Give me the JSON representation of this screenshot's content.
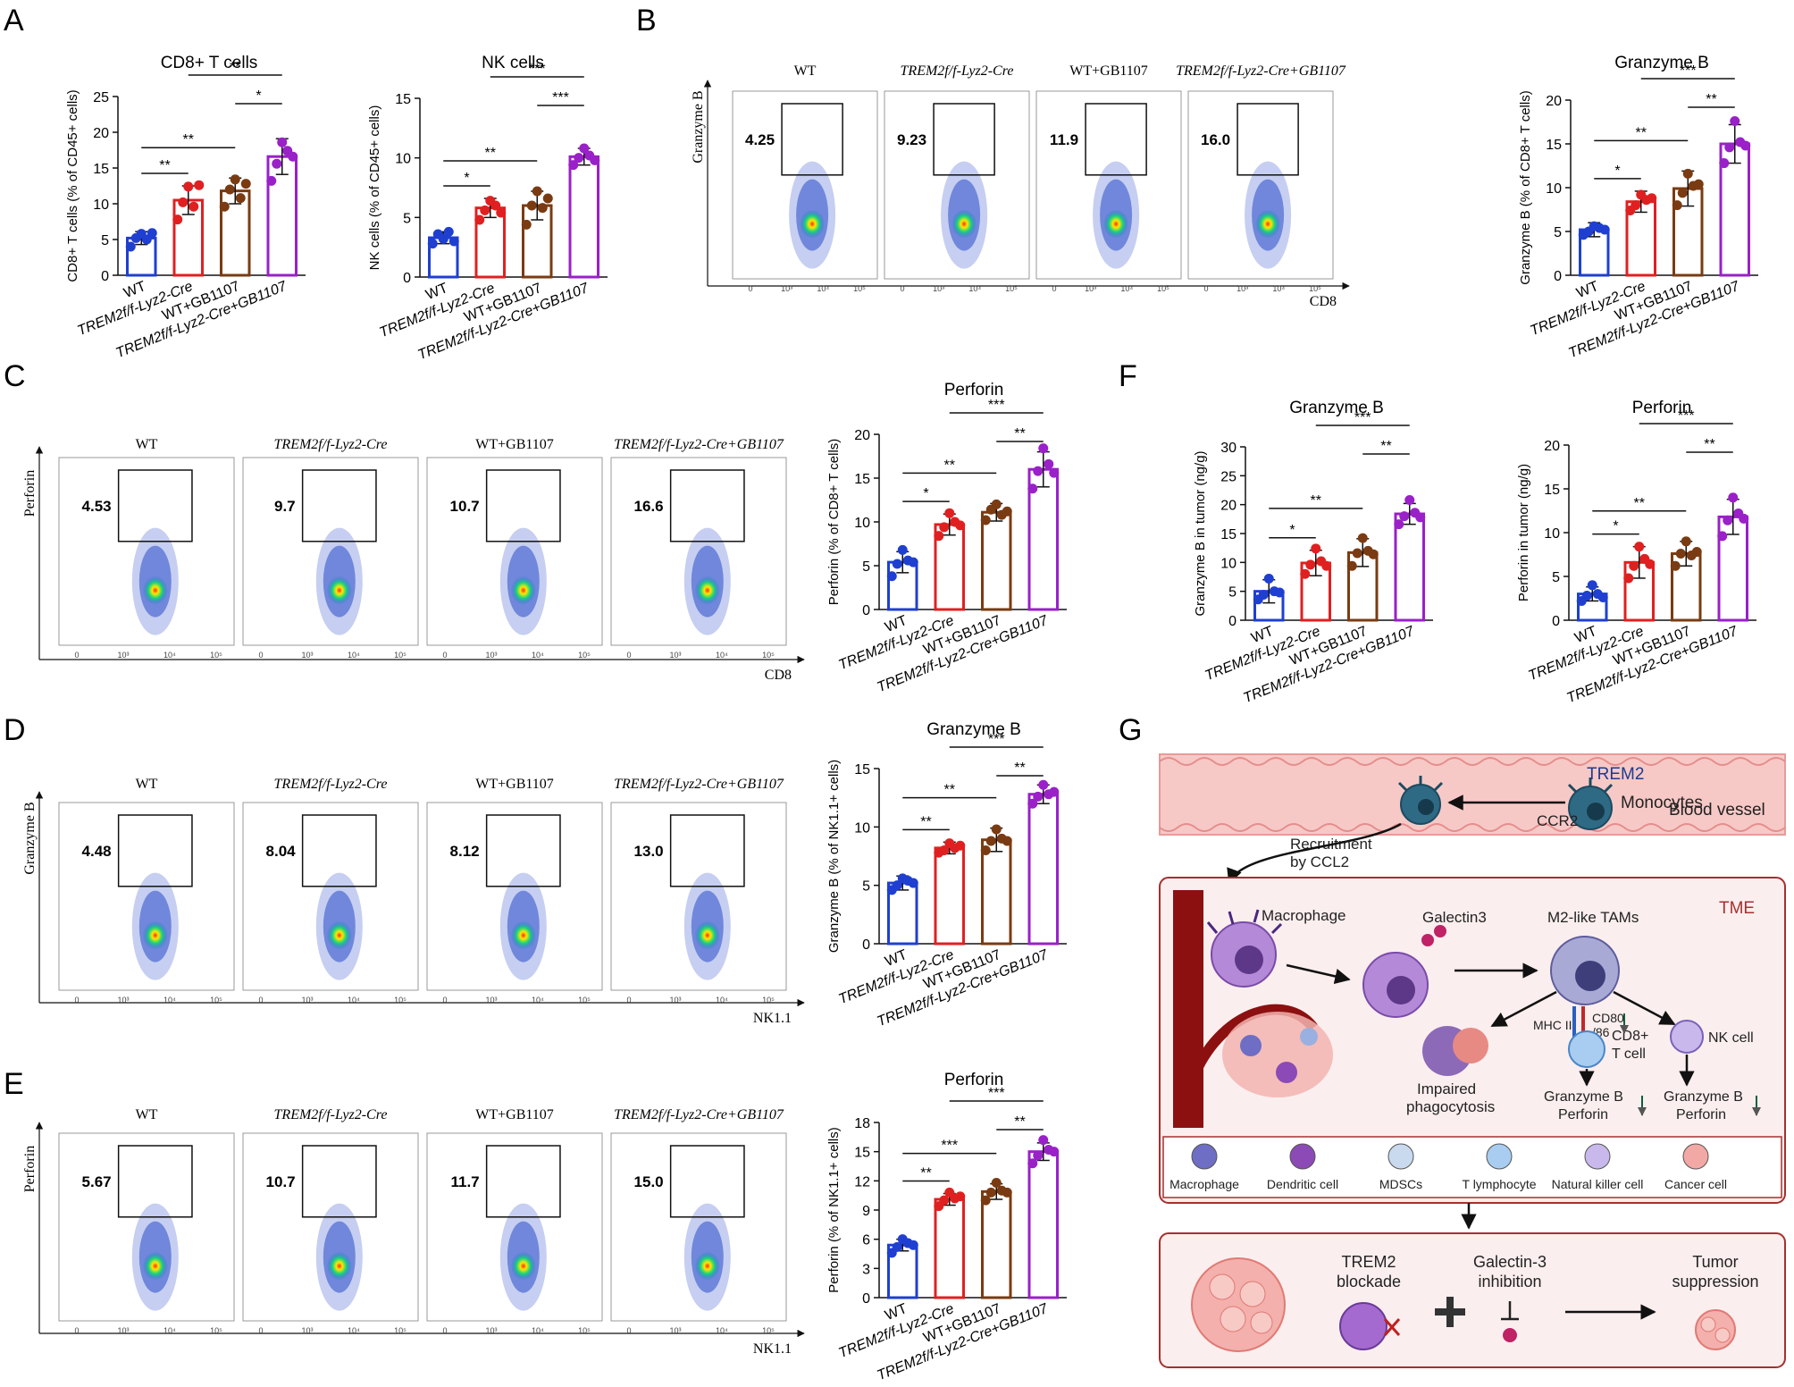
{
  "panel_letters": [
    "A",
    "B",
    "C",
    "D",
    "E",
    "F",
    "G"
  ],
  "groups": [
    "WT",
    "TREM2f/f-Lyz2-Cre",
    "WT+GB1107",
    "TREM2f/f-Lyz2-Cre+GB1107"
  ],
  "colors": {
    "WT": "#1f3fd1",
    "Cre": "#e02020",
    "GB": "#7a3b12",
    "CreGB": "#9a20c8"
  },
  "chart_data": [
    {
      "id": "A1",
      "type": "bar",
      "title": "CD8+ T cells",
      "ylabel": "CD8+ T cells (% of CD45+ cells)",
      "ylim": [
        0,
        25
      ],
      "yticks": [
        0,
        5,
        10,
        15,
        20,
        25
      ],
      "values": [
        5.2,
        10.5,
        11.8,
        16.6
      ],
      "errors": [
        0.9,
        2.0,
        1.8,
        2.5
      ],
      "points": [
        [
          4.0,
          5.2,
          5.8,
          5.0,
          5.9
        ],
        [
          7.8,
          10.2,
          12.4,
          9.6,
          12.6
        ],
        [
          9.6,
          12.0,
          13.4,
          10.8,
          12.8
        ],
        [
          13.2,
          15.6,
          18.6,
          17.4,
          16.6
        ]
      ],
      "sig": [
        {
          "a": 0,
          "b": 1,
          "t": "**",
          "lvl": 0
        },
        {
          "a": 0,
          "b": 2,
          "t": "**",
          "lvl": 1
        },
        {
          "a": 2,
          "b": 3,
          "t": "*",
          "lvl": 2
        },
        {
          "a": 1,
          "b": 3,
          "t": "**",
          "lvl": 3
        }
      ]
    },
    {
      "id": "A2",
      "type": "bar",
      "title": "NK cells",
      "ylabel": "NK cells (% of CD45+ cells)",
      "ylim": [
        0,
        15
      ],
      "yticks": [
        0,
        5,
        10,
        15
      ],
      "values": [
        3.3,
        5.8,
        6.0,
        10.1
      ],
      "errors": [
        0.5,
        0.8,
        1.2,
        0.7
      ],
      "points": [
        [
          2.8,
          3.6,
          3.2,
          3.8,
          3.0
        ],
        [
          4.8,
          5.6,
          6.4,
          6.0,
          5.4
        ],
        [
          4.4,
          6.0,
          7.2,
          5.8,
          6.6
        ],
        [
          9.4,
          10.0,
          10.8,
          10.2,
          9.8
        ]
      ],
      "sig": [
        {
          "a": 0,
          "b": 1,
          "t": "*",
          "lvl": 0
        },
        {
          "a": 0,
          "b": 2,
          "t": "**",
          "lvl": 1
        },
        {
          "a": 2,
          "b": 3,
          "t": "***",
          "lvl": 2
        },
        {
          "a": 1,
          "b": 3,
          "t": "***",
          "lvl": 3
        }
      ]
    },
    {
      "id": "B",
      "type": "bar",
      "title": "Granzyme B",
      "ylabel": "Granzyme B (% of CD8+ T cells)",
      "ylim": [
        0,
        20
      ],
      "yticks": [
        0,
        5,
        10,
        15,
        20
      ],
      "values": [
        5.2,
        8.4,
        9.9,
        15.0
      ],
      "errors": [
        0.8,
        1.2,
        2.0,
        2.2
      ],
      "points": [
        [
          4.6,
          5.0,
          5.6,
          5.4,
          5.2
        ],
        [
          7.4,
          8.0,
          9.2,
          8.6,
          8.8
        ],
        [
          8.0,
          9.4,
          11.6,
          10.2,
          10.4
        ],
        [
          12.8,
          14.6,
          17.6,
          15.2,
          14.8
        ]
      ],
      "sig": [
        {
          "a": 0,
          "b": 1,
          "t": "*",
          "lvl": 0
        },
        {
          "a": 0,
          "b": 2,
          "t": "**",
          "lvl": 1
        },
        {
          "a": 2,
          "b": 3,
          "t": "**",
          "lvl": 2
        },
        {
          "a": 1,
          "b": 3,
          "t": "***",
          "lvl": 3
        }
      ]
    },
    {
      "id": "C",
      "type": "bar",
      "title": "Perforin",
      "ylabel": "Perforin (% of CD8+ T cells)",
      "ylim": [
        0,
        20
      ],
      "yticks": [
        0,
        5,
        10,
        15,
        20
      ],
      "values": [
        5.4,
        9.7,
        11.1,
        16.0
      ],
      "errors": [
        1.2,
        1.2,
        1.0,
        2.0
      ],
      "points": [
        [
          3.8,
          5.2,
          6.8,
          5.6,
          5.4
        ],
        [
          8.4,
          9.4,
          11.0,
          10.0,
          9.6
        ],
        [
          10.2,
          11.4,
          12.0,
          10.8,
          11.2
        ],
        [
          13.8,
          15.8,
          18.4,
          16.6,
          15.6
        ]
      ],
      "sig": [
        {
          "a": 0,
          "b": 1,
          "t": "*",
          "lvl": 0
        },
        {
          "a": 0,
          "b": 2,
          "t": "**",
          "lvl": 1
        },
        {
          "a": 2,
          "b": 3,
          "t": "**",
          "lvl": 2
        },
        {
          "a": 1,
          "b": 3,
          "t": "***",
          "lvl": 3
        }
      ]
    },
    {
      "id": "D",
      "type": "bar",
      "title": "Granzyme B",
      "ylabel": "Granzyme B (% of NK1.1+ cells)",
      "ylim": [
        0,
        15
      ],
      "yticks": [
        0,
        5,
        10,
        15
      ],
      "values": [
        5.2,
        8.2,
        8.9,
        12.8
      ],
      "errors": [
        0.6,
        0.5,
        1.0,
        0.8
      ],
      "points": [
        [
          4.6,
          5.0,
          5.6,
          5.4,
          5.2
        ],
        [
          7.8,
          8.0,
          8.6,
          8.2,
          8.4
        ],
        [
          8.0,
          8.8,
          9.8,
          9.0,
          8.8
        ],
        [
          12.0,
          12.6,
          13.6,
          12.8,
          13.0
        ]
      ],
      "sig": [
        {
          "a": 0,
          "b": 1,
          "t": "**",
          "lvl": 0
        },
        {
          "a": 0,
          "b": 2,
          "t": "**",
          "lvl": 1
        },
        {
          "a": 2,
          "b": 3,
          "t": "**",
          "lvl": 2
        },
        {
          "a": 1,
          "b": 3,
          "t": "***",
          "lvl": 3
        }
      ]
    },
    {
      "id": "E",
      "type": "bar",
      "title": "Perforin",
      "ylabel": "Perforin (% of NK1.1+ cells)",
      "ylim": [
        0,
        18
      ],
      "yticks": [
        0,
        3,
        6,
        9,
        12,
        15,
        18
      ],
      "values": [
        5.4,
        10.1,
        10.9,
        15.0
      ],
      "errors": [
        0.6,
        0.6,
        0.8,
        0.9
      ],
      "points": [
        [
          4.6,
          5.2,
          6.0,
          5.6,
          5.4
        ],
        [
          9.4,
          10.0,
          10.8,
          10.2,
          10.4
        ],
        [
          10.0,
          10.8,
          11.8,
          11.0,
          10.8
        ],
        [
          13.8,
          14.6,
          16.2,
          15.2,
          15.0
        ]
      ],
      "sig": [
        {
          "a": 0,
          "b": 1,
          "t": "**",
          "lvl": 0
        },
        {
          "a": 0,
          "b": 2,
          "t": "***",
          "lvl": 1
        },
        {
          "a": 2,
          "b": 3,
          "t": "**",
          "lvl": 2
        },
        {
          "a": 1,
          "b": 3,
          "t": "***",
          "lvl": 3
        }
      ]
    },
    {
      "id": "F1",
      "type": "bar",
      "title": "Granzyme B",
      "ylabel": "Granzyme B in tumor (ng/g)",
      "ylim": [
        0,
        30
      ],
      "yticks": [
        0,
        5,
        10,
        15,
        20,
        25,
        30
      ],
      "values": [
        5.0,
        9.9,
        11.7,
        18.4
      ],
      "errors": [
        2.0,
        2.2,
        2.4,
        1.8
      ],
      "points": [
        [
          3.6,
          4.4,
          7.2,
          5.0,
          4.8
        ],
        [
          8.0,
          9.6,
          12.4,
          10.2,
          9.4
        ],
        [
          9.4,
          11.6,
          14.2,
          12.0,
          11.4
        ],
        [
          16.6,
          18.0,
          20.8,
          18.6,
          17.8
        ]
      ],
      "sig": [
        {
          "a": 0,
          "b": 1,
          "t": "*",
          "lvl": 0
        },
        {
          "a": 0,
          "b": 2,
          "t": "**",
          "lvl": 1
        },
        {
          "a": 2,
          "b": 3,
          "t": "**",
          "lvl": 2
        },
        {
          "a": 1,
          "b": 3,
          "t": "***",
          "lvl": 3
        }
      ]
    },
    {
      "id": "F2",
      "type": "bar",
      "title": "Perforin",
      "ylabel": "Perforin in tumor (ng/g)",
      "ylim": [
        0,
        20
      ],
      "yticks": [
        0,
        5,
        10,
        15,
        20
      ],
      "values": [
        3.0,
        6.6,
        7.6,
        11.8
      ],
      "errors": [
        0.8,
        1.8,
        1.4,
        2.0
      ],
      "points": [
        [
          2.2,
          2.8,
          4.0,
          3.0,
          2.6
        ],
        [
          4.8,
          6.2,
          8.4,
          7.0,
          6.4
        ],
        [
          6.2,
          7.6,
          9.0,
          7.4,
          7.8
        ],
        [
          9.6,
          11.4,
          14.0,
          12.2,
          11.6
        ]
      ],
      "sig": [
        {
          "a": 0,
          "b": 1,
          "t": "*",
          "lvl": 0
        },
        {
          "a": 0,
          "b": 2,
          "t": "**",
          "lvl": 1
        },
        {
          "a": 2,
          "b": 3,
          "t": "**",
          "lvl": 2
        },
        {
          "a": 1,
          "b": 3,
          "t": "***",
          "lvl": 3
        }
      ]
    }
  ],
  "flow_panels": [
    {
      "id": "B",
      "ylabel": "Granzyme B",
      "xlabel": "CD8",
      "values": [
        "4.25",
        "9.23",
        "11.9",
        "16.0"
      ]
    },
    {
      "id": "C",
      "ylabel": "Perforin",
      "xlabel": "CD8",
      "values": [
        "4.53",
        "9.7",
        "10.7",
        "16.6"
      ]
    },
    {
      "id": "D",
      "ylabel": "Granzyme B",
      "xlabel": "NK1.1",
      "values": [
        "4.48",
        "8.04",
        "8.12",
        "13.0"
      ]
    },
    {
      "id": "E",
      "ylabel": "Perforin",
      "xlabel": "NK1.1",
      "values": [
        "5.67",
        "10.7",
        "11.7",
        "15.0"
      ]
    }
  ],
  "flow_axis_ticks": [
    "0",
    "10³",
    "10⁴",
    "10⁵",
    "10⁶"
  ],
  "schematic": {
    "trem2": "TREM2",
    "monocytes": "Monocytes",
    "blood_vessel": "Blood vessel",
    "ccr2": "CCR2",
    "recruitment": "Recruitment",
    "by_ccl2": "by CCL2",
    "macrophage": "Macrophage",
    "galectin3": "Galectin3",
    "m2_tams": "M2-like TAMs",
    "tme": "TME",
    "mhc": "MHC II",
    "cd80": "CD80",
    "cd86": "/86",
    "cd8": "CD8+",
    "tcell": "T cell",
    "nk": "NK cell",
    "impaired": "Impaired",
    "phago": "phagocytosis",
    "gzm": "Granzyme B",
    "perf": "Perforin",
    "legend": [
      "Macrophage",
      "Dendritic cell",
      "MDSCs",
      "T lymphocyte",
      "Natural killer cell",
      "Cancer cell"
    ],
    "trem2_blockade": [
      "TREM2",
      "blockade"
    ],
    "gal_inhib": [
      "Galectin-3",
      "inhibition"
    ],
    "tumor_supp": [
      "Tumor",
      "suppression"
    ]
  }
}
